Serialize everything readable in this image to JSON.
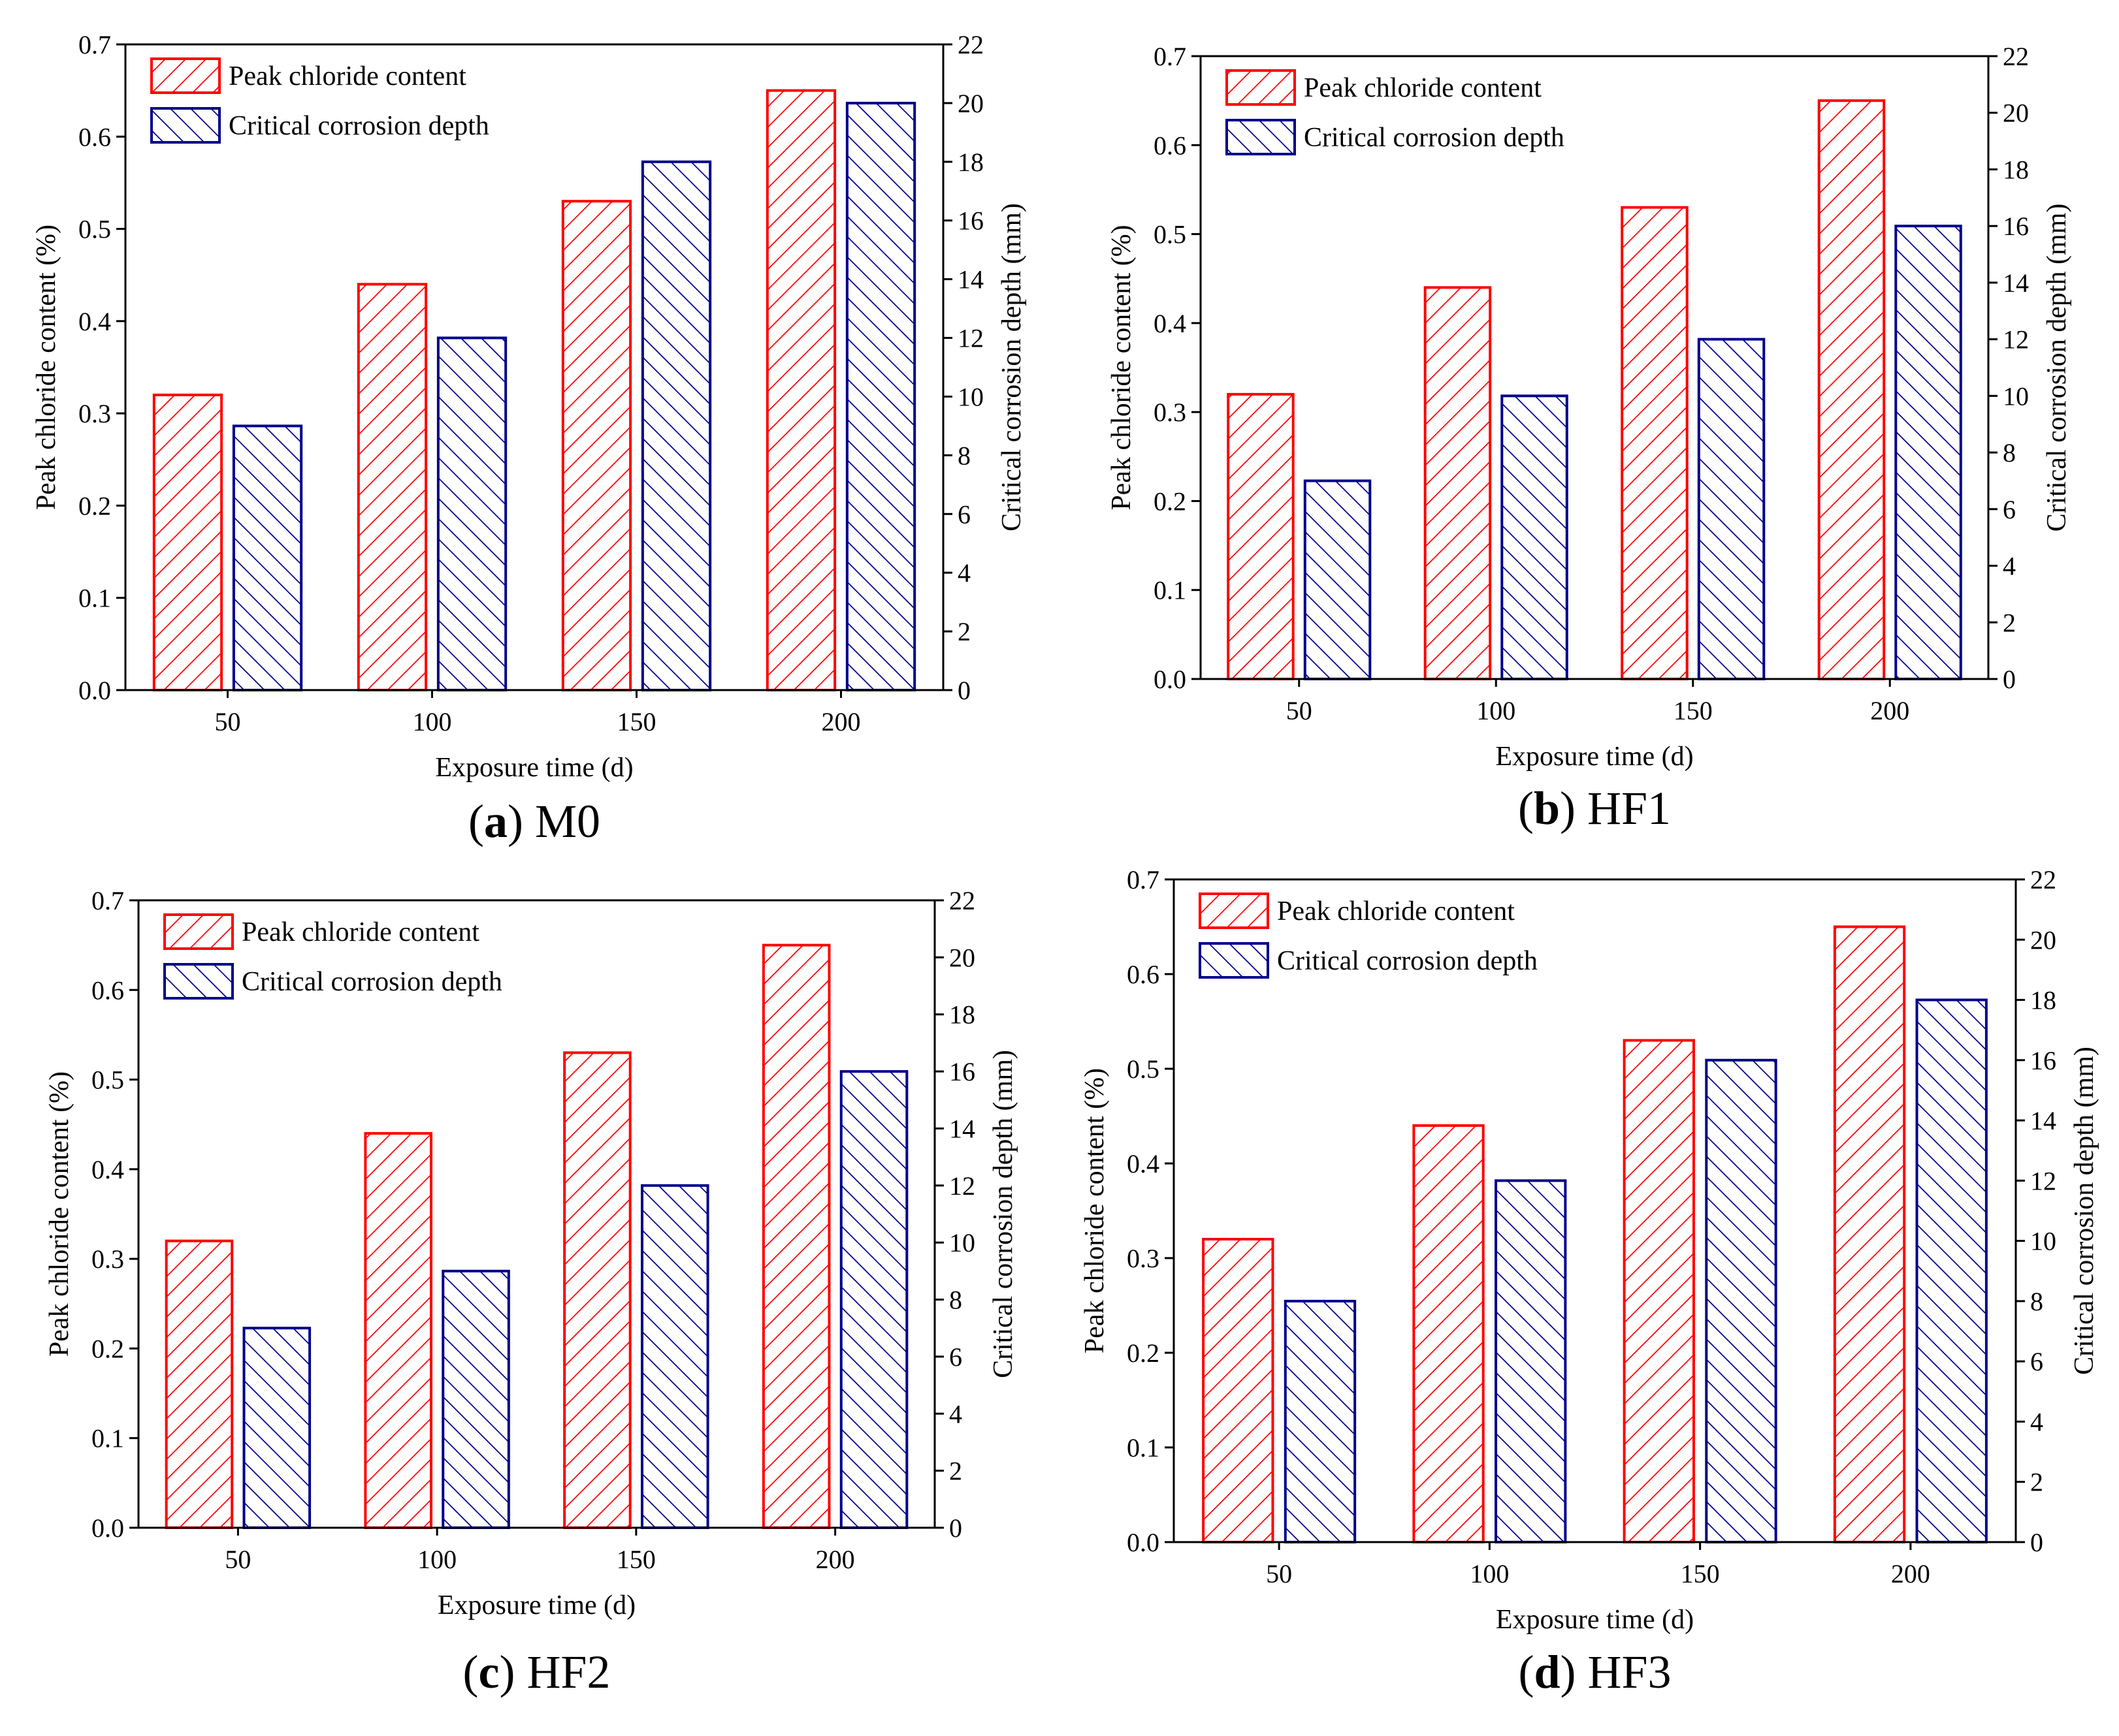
{
  "figure": {
    "colors": {
      "primary": "#ff0000",
      "secondary": "#00008b",
      "axis": "#000000"
    }
  },
  "chart_data": [
    {
      "type": "bar",
      "panel_letter": "a",
      "panel_name": "M0",
      "caption_open": "(",
      "caption_close": ")",
      "xlabel": "Exposure time (d)",
      "ylabel": "Peak chloride content (%)",
      "ylabel_right": "Critical corrosion depth (mm)",
      "categories": [
        "50",
        "100",
        "150",
        "200"
      ],
      "ylim": [
        0,
        0.7
      ],
      "ylim_right": [
        0,
        22
      ],
      "yticks": [
        "0.0",
        "0.1",
        "0.2",
        "0.3",
        "0.4",
        "0.5",
        "0.6",
        "0.7"
      ],
      "yticks_right": [
        "0",
        "2",
        "4",
        "6",
        "8",
        "10",
        "12",
        "14",
        "16",
        "18",
        "20",
        "22"
      ],
      "legend_position": "top-left",
      "series": [
        {
          "name": "Peak chloride content",
          "axis": "left",
          "values": [
            0.32,
            0.44,
            0.53,
            0.65
          ]
        },
        {
          "name": "Critical corrosion depth",
          "axis": "right",
          "values": [
            9,
            12,
            18,
            20
          ]
        }
      ]
    },
    {
      "type": "bar",
      "panel_letter": "b",
      "panel_name": "HF1",
      "caption_open": "(",
      "caption_close": ")",
      "xlabel": "Exposure time (d)",
      "ylabel": "Peak chloride content (%)",
      "ylabel_right": "Critical corrosion depth (mm)",
      "categories": [
        "50",
        "100",
        "150",
        "200"
      ],
      "ylim": [
        0,
        0.7
      ],
      "ylim_right": [
        0,
        22
      ],
      "yticks": [
        "0.0",
        "0.1",
        "0.2",
        "0.3",
        "0.4",
        "0.5",
        "0.6",
        "0.7"
      ],
      "yticks_right": [
        "0",
        "2",
        "4",
        "6",
        "8",
        "10",
        "12",
        "14",
        "16",
        "18",
        "20",
        "22"
      ],
      "legend_position": "top-left",
      "series": [
        {
          "name": "Peak chloride content",
          "axis": "left",
          "values": [
            0.32,
            0.44,
            0.53,
            0.65
          ]
        },
        {
          "name": "Critical corrosion depth",
          "axis": "right",
          "values": [
            7,
            10,
            12,
            16
          ]
        }
      ]
    },
    {
      "type": "bar",
      "panel_letter": "c",
      "panel_name": "HF2",
      "caption_open": "(",
      "caption_close": ")",
      "xlabel": "Exposure time (d)",
      "ylabel": "Peak chloride content (%)",
      "ylabel_right": "Critical corrosion depth (mm)",
      "categories": [
        "50",
        "100",
        "150",
        "200"
      ],
      "ylim": [
        0,
        0.7
      ],
      "ylim_right": [
        0,
        22
      ],
      "yticks": [
        "0.0",
        "0.1",
        "0.2",
        "0.3",
        "0.4",
        "0.5",
        "0.6",
        "0.7"
      ],
      "yticks_right": [
        "0",
        "2",
        "4",
        "6",
        "8",
        "10",
        "12",
        "14",
        "16",
        "18",
        "20",
        "22"
      ],
      "legend_position": "top-left",
      "series": [
        {
          "name": "Peak chloride content",
          "axis": "left",
          "values": [
            0.32,
            0.44,
            0.53,
            0.65
          ]
        },
        {
          "name": "Critical corrosion depth",
          "axis": "right",
          "values": [
            7,
            9,
            12,
            16
          ]
        }
      ]
    },
    {
      "type": "bar",
      "panel_letter": "d",
      "panel_name": "HF3",
      "caption_open": "(",
      "caption_close": ")",
      "xlabel": "Exposure time (d)",
      "ylabel": "Peak chloride content (%)",
      "ylabel_right": "Critical corrosion depth (mm)",
      "categories": [
        "50",
        "100",
        "150",
        "200"
      ],
      "ylim": [
        0,
        0.7
      ],
      "ylim_right": [
        0,
        22
      ],
      "yticks": [
        "0.0",
        "0.1",
        "0.2",
        "0.3",
        "0.4",
        "0.5",
        "0.6",
        "0.7"
      ],
      "yticks_right": [
        "0",
        "2",
        "4",
        "6",
        "8",
        "10",
        "12",
        "14",
        "16",
        "18",
        "20",
        "22"
      ],
      "legend_position": "top-left",
      "series": [
        {
          "name": "Peak chloride content",
          "axis": "left",
          "values": [
            0.32,
            0.44,
            0.53,
            0.65
          ]
        },
        {
          "name": "Critical corrosion depth",
          "axis": "right",
          "values": [
            8,
            12,
            16,
            18
          ]
        }
      ]
    }
  ]
}
